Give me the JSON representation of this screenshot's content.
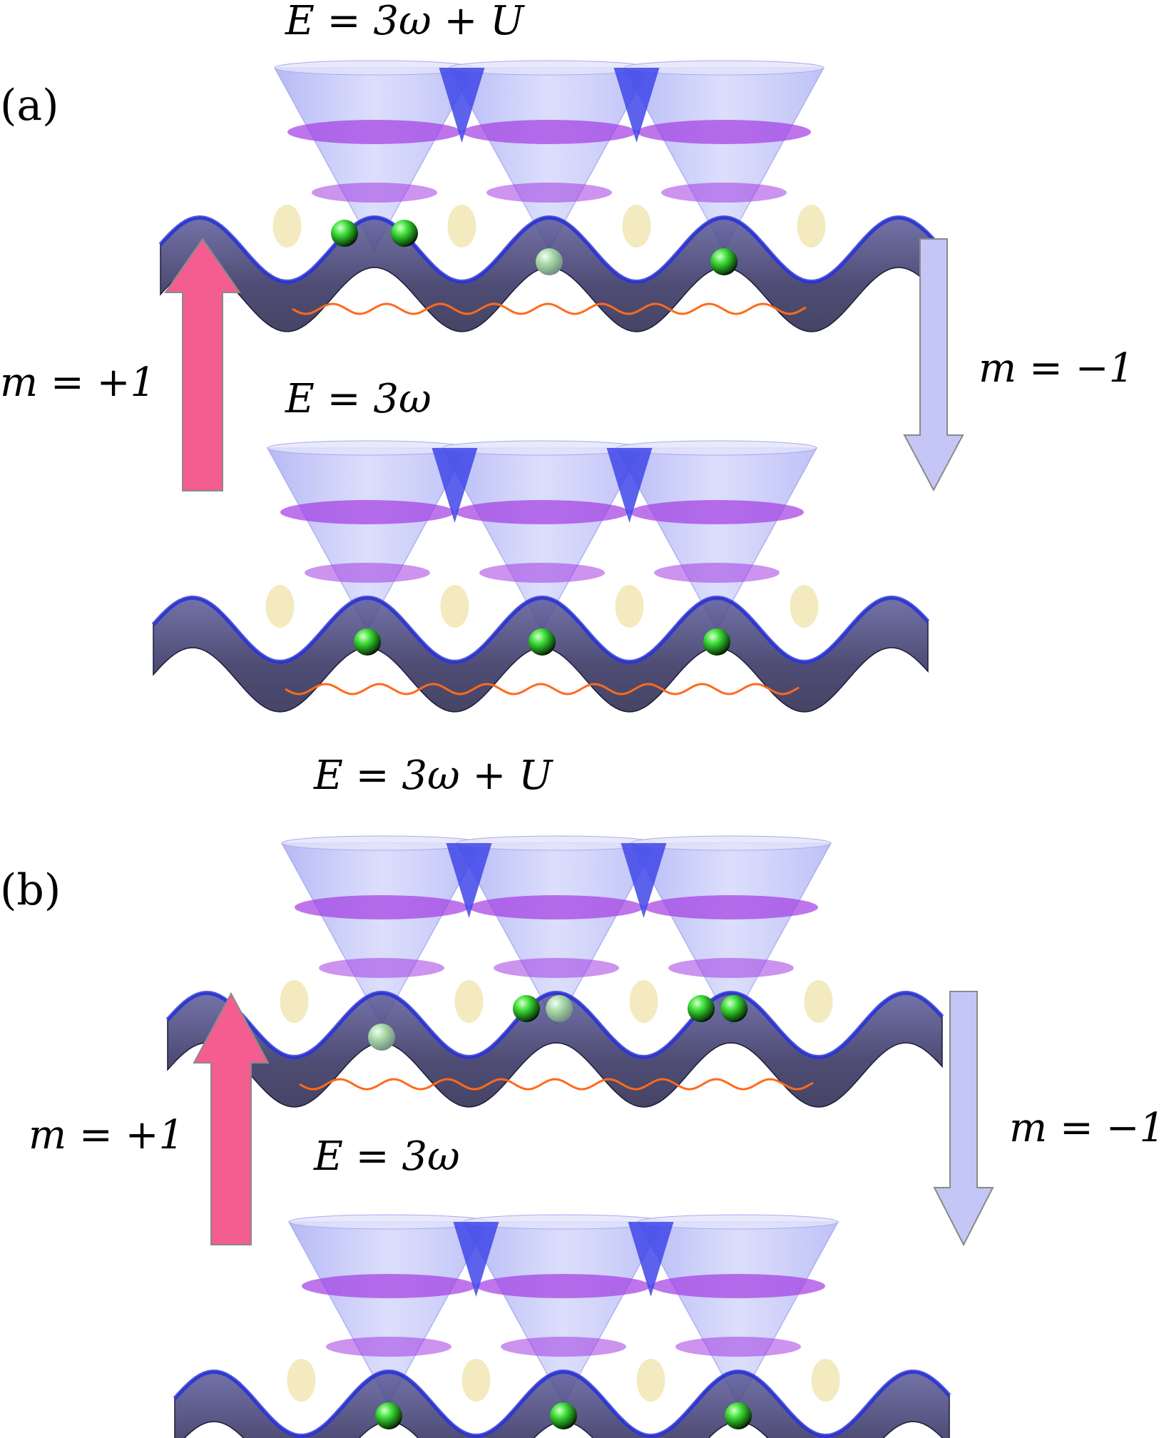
{
  "figure": {
    "panels": [
      {
        "id": "a",
        "panel_label": "(a)",
        "top_level": {
          "energy_label": "E = 3ω + U",
          "atoms_per_site": [
            2,
            1,
            1
          ],
          "faded": [
            false,
            true,
            false
          ]
        },
        "bottom_level": {
          "energy_label": "E = 3ω",
          "atoms_per_site": [
            1,
            1,
            1
          ],
          "faded": [
            false,
            false,
            false
          ]
        },
        "up_arrow_label": "m = +1",
        "down_arrow_label": "m = −1"
      },
      {
        "id": "b",
        "panel_label": "(b)",
        "top_level": {
          "energy_label": "E = 3ω + U",
          "atoms_per_site": [
            1,
            2,
            2
          ],
          "faded": [
            true,
            true,
            false
          ]
        },
        "bottom_level": {
          "energy_label": "E = 3ω",
          "atoms_per_site": [
            1,
            1,
            1
          ],
          "faded": [
            false,
            false,
            false
          ]
        },
        "up_arrow_label": "m = +1",
        "down_arrow_label": "m = −1"
      }
    ],
    "colors": {
      "cone": "#b4b8f6",
      "cone_tip": "#3f46e8",
      "energy_band": "#a23ae2",
      "lattice_surface": "#3c3a74",
      "lattice_highlight": "#f1e6b4",
      "atom": "#3fe03a",
      "spring": "#ff6a1a",
      "up_arrow": "#f45d90",
      "down_arrow": "#c4c6f6"
    }
  }
}
